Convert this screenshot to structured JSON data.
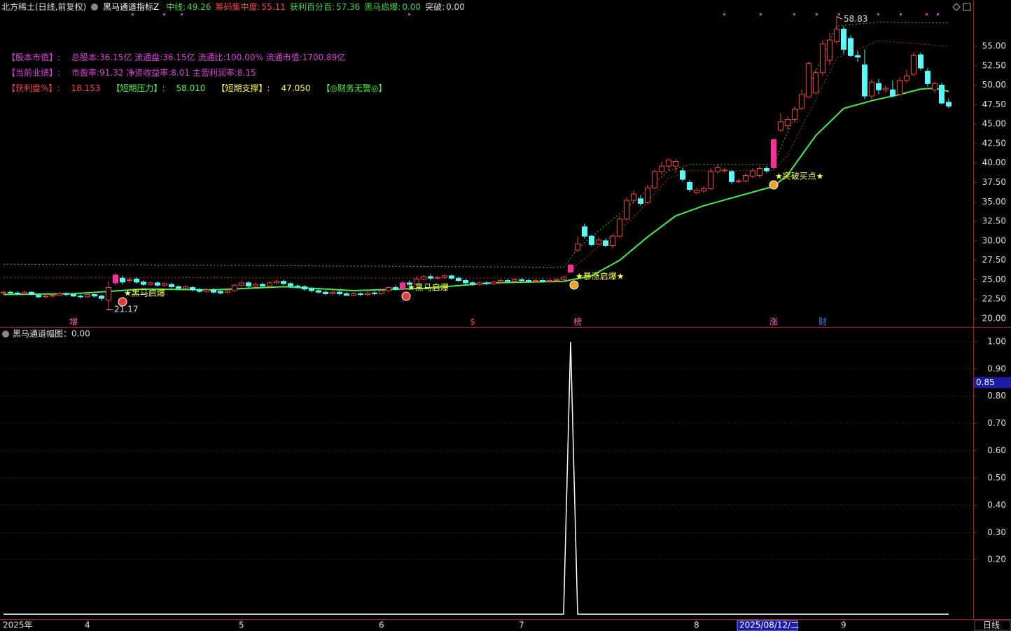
{
  "header": {
    "symbol": "北方稀土(日线,前复权)",
    "indicator": "黑马通道指标Z",
    "readouts": [
      {
        "label": "中线:",
        "value": 49.26,
        "color": "#3ddc3d"
      },
      {
        "label": "筹码集中度:",
        "value": 55.11,
        "color": "#ff4040"
      },
      {
        "label": "获利百分百:",
        "value": 57.36,
        "color": "#3ddc3d"
      },
      {
        "label": "黑马启爆:",
        "value": 0,
        "value_label": "0.00",
        "color": "#3ddc3d"
      },
      {
        "label": "突破:",
        "value": 0,
        "value_label": "0.00",
        "color": "#dddddd"
      }
    ]
  },
  "info_panel": [
    [
      {
        "text": "【股本市值】:",
        "color": "#e040e0"
      },
      {
        "text": "总股本:36.15亿 流通盘:36.15亿 流通比:100.00% 流通市值:1700.89亿",
        "color": "#e040e0"
      }
    ],
    [
      {
        "text": "【当前业绩】:",
        "color": "#e040e0"
      },
      {
        "text": "市盈率:91.32 净资收益率:8.01 主营利润率:8.15",
        "color": "#e040e0"
      }
    ],
    [
      {
        "text": "【获利盘%】:",
        "color": "#ff4040"
      },
      {
        "text": "18.153",
        "color": "#ff4040"
      },
      {
        "text": "【短期压力】:",
        "color": "#40ff40"
      },
      {
        "text": "58.010",
        "color": "#40ff40"
      },
      {
        "text": "【短期支撑】:",
        "color": "#ffff40"
      },
      {
        "text": "47.050",
        "color": "#ffff40"
      },
      {
        "text": "【◎财务无警◎】",
        "color": "#40ff40"
      }
    ]
  ],
  "time_axis": {
    "ticks": [
      {
        "index": 0,
        "label": "2025年"
      },
      {
        "index": 12,
        "label": "4"
      },
      {
        "index": 34,
        "label": "5"
      },
      {
        "index": 54,
        "label": "6"
      },
      {
        "index": 74,
        "label": "7"
      },
      {
        "index": 99,
        "label": "8"
      },
      {
        "index": 120,
        "label": "9"
      }
    ],
    "cursor": {
      "index": 105,
      "label": "2025/08/12/二"
    },
    "period": "日线"
  },
  "chart_data": [
    {
      "type": "candlestick",
      "ylim": [
        18.92,
        59.32
      ],
      "grid": false,
      "yticks": [
        {
          "value": 20,
          "label": "20.00"
        },
        {
          "value": 22.5,
          "label": "22.50"
        },
        {
          "value": 25,
          "label": "25.00"
        },
        {
          "value": 27.5,
          "label": "27.50"
        },
        {
          "value": 30,
          "label": "30.00"
        },
        {
          "value": 32.5,
          "label": "32.50"
        },
        {
          "value": 35,
          "label": "35.00"
        },
        {
          "value": 37.5,
          "label": "37.50"
        },
        {
          "value": 40,
          "label": "40.00"
        },
        {
          "value": 42.5,
          "label": "42.50"
        },
        {
          "value": 45,
          "label": "45.00"
        },
        {
          "value": 47.5,
          "label": "47.50"
        },
        {
          "value": 50,
          "label": "50.00"
        },
        {
          "value": 52.5,
          "label": "52.50"
        },
        {
          "value": 55,
          "label": "55.00"
        }
      ],
      "open": [
        23.3,
        23.4,
        23.3,
        23.2,
        23.4,
        23.0,
        22.8,
        22.9,
        23.0,
        23.2,
        23.1,
        22.9,
        22.8,
        23.1,
        22.9,
        22.4,
        24.6,
        25.2,
        24.9,
        25.1,
        24.7,
        24.4,
        24.6,
        24.3,
        24.4,
        24.1,
        23.9,
        24.0,
        23.7,
        23.5,
        23.7,
        23.5,
        23.4,
        23.6,
        24.3,
        24.6,
        24.2,
        24.4,
        24.2,
        24.6,
        24.8,
        24.5,
        24.2,
        24.1,
        23.8,
        23.6,
        23.4,
        23.2,
        23.4,
        23.2,
        23.0,
        23.2,
        23.1,
        23.3,
        23.2,
        23.6,
        24.0,
        23.8,
        24.6,
        24.4,
        25.1,
        25.4,
        25.2,
        25.3,
        25.5,
        25.2,
        24.9,
        24.6,
        24.4,
        24.6,
        24.5,
        24.7,
        24.9,
        24.8,
        25.0,
        24.9,
        24.8,
        24.9,
        24.8,
        24.9,
        25.0,
        26.0,
        28.8,
        31.8,
        30.6,
        29.6,
        30.0,
        29.4,
        30.6,
        32.8,
        35.2,
        35.4,
        34.9,
        36.8,
        38.9,
        39.6,
        39.6,
        39.0,
        37.5,
        36.2,
        36.4,
        36.7,
        38.9,
        39.0,
        38.9,
        37.6,
        37.7,
        38.3,
        38.4,
        39.3,
        39.4,
        44.2,
        44.8,
        45.6,
        47.0,
        48.5,
        49.0,
        51.6,
        53.2,
        55.6,
        57.2,
        56.0,
        53.8,
        52.6,
        48.6,
        50.2,
        49.4,
        49.4,
        48.8,
        50.6,
        51.4,
        53.9,
        51.8,
        49.4,
        50.0,
        47.8
      ],
      "high": [
        23.6,
        23.6,
        23.5,
        23.6,
        23.5,
        23.2,
        23.1,
        23.2,
        23.4,
        23.4,
        23.3,
        23.1,
        23.3,
        23.2,
        23.1,
        24.8,
        25.8,
        25.5,
        25.3,
        25.3,
        24.9,
        24.8,
        24.8,
        24.7,
        24.6,
        24.3,
        24.3,
        24.2,
        23.9,
        23.9,
        23.9,
        23.7,
        23.8,
        24.5,
        24.8,
        24.8,
        24.6,
        24.6,
        24.8,
        25.0,
        25.0,
        24.7,
        24.4,
        24.3,
        24.0,
        23.8,
        23.6,
        23.6,
        23.6,
        23.4,
        23.4,
        23.4,
        23.5,
        23.5,
        23.8,
        24.2,
        24.3,
        24.8,
        24.9,
        25.5,
        25.6,
        25.7,
        25.5,
        25.7,
        25.7,
        25.4,
        25.1,
        24.8,
        24.8,
        24.8,
        24.9,
        25.1,
        25.1,
        25.2,
        25.2,
        25.1,
        25.1,
        25.1,
        25.1,
        25.2,
        25.5,
        27.0,
        30.6,
        32.2,
        30.8,
        30.4,
        30.3,
        30.8,
        33.2,
        35.6,
        36.5,
        35.8,
        37.2,
        39.2,
        40.2,
        40.6,
        40.5,
        39.4,
        37.8,
        36.8,
        37.0,
        39.3,
        39.8,
        39.4,
        39.1,
        38.0,
        38.7,
        39.3,
        39.6,
        39.6,
        43.0,
        46.4,
        46.0,
        47.3,
        49.4,
        53.0,
        52.0,
        55.8,
        56.7,
        58.83,
        57.6,
        56.4,
        54.4,
        54.6,
        50.8,
        50.8,
        50.0,
        50.6,
        51.0,
        52.0,
        54.2,
        54.2,
        52.2,
        50.4,
        50.3,
        48.3
      ],
      "low": [
        23.1,
        23.2,
        23.0,
        23.1,
        23.0,
        22.6,
        22.6,
        22.7,
        22.9,
        22.9,
        22.8,
        22.6,
        22.7,
        22.7,
        22.3,
        21.17,
        24.3,
        24.4,
        24.6,
        24.5,
        24.2,
        24.2,
        24.1,
        24.1,
        23.9,
        23.7,
        23.7,
        23.5,
        23.3,
        23.3,
        23.2,
        23.1,
        23.2,
        23.4,
        24.1,
        24.0,
        24.0,
        24.0,
        24.0,
        24.4,
        24.3,
        24.0,
        23.9,
        23.6,
        23.4,
        23.2,
        23.0,
        23.0,
        23.0,
        22.9,
        22.9,
        22.9,
        22.9,
        23.0,
        23.0,
        23.4,
        23.6,
        23.6,
        24.2,
        24.2,
        24.9,
        24.9,
        25.0,
        25.1,
        25.0,
        24.7,
        24.4,
        24.2,
        24.2,
        24.3,
        24.3,
        24.5,
        24.6,
        24.6,
        24.7,
        24.6,
        24.6,
        24.6,
        24.6,
        24.7,
        24.8,
        25.9,
        28.6,
        30.3,
        29.3,
        29.4,
        29.2,
        29.0,
        30.4,
        32.6,
        34.8,
        34.5,
        34.7,
        36.6,
        38.5,
        39.0,
        38.8,
        37.6,
        36.3,
        36.0,
        36.2,
        36.5,
        38.6,
        38.7,
        37.3,
        37.4,
        37.5,
        38.0,
        38.1,
        38.7,
        39.2,
        44.0,
        44.3,
        45.2,
        46.8,
        48.3,
        48.8,
        51.2,
        52.6,
        55.3,
        54.0,
        53.6,
        53.0,
        48.2,
        48.2,
        48.8,
        49.0,
        48.4,
        48.6,
        50.3,
        51.2,
        51.9,
        49.8,
        49.0,
        47.5,
        47.0
      ],
      "close": [
        23.4,
        23.3,
        23.2,
        23.4,
        23.1,
        22.8,
        22.9,
        23.0,
        23.2,
        23.1,
        22.9,
        22.8,
        23.1,
        22.9,
        22.6,
        24.0,
        25.6,
        24.7,
        25.0,
        24.7,
        24.4,
        24.6,
        24.3,
        24.5,
        24.1,
        23.9,
        24.1,
        23.7,
        23.5,
        23.7,
        23.4,
        23.3,
        23.6,
        24.3,
        24.6,
        24.2,
        24.4,
        24.2,
        24.6,
        24.8,
        24.5,
        24.2,
        24.1,
        23.8,
        23.6,
        23.4,
        23.2,
        23.4,
        23.2,
        23.0,
        23.2,
        23.1,
        23.3,
        23.2,
        23.6,
        24.0,
        23.8,
        24.6,
        24.4,
        25.1,
        25.4,
        25.2,
        25.3,
        25.5,
        25.2,
        24.9,
        24.6,
        24.4,
        24.6,
        24.5,
        24.7,
        24.9,
        24.8,
        25.0,
        24.9,
        24.8,
        24.9,
        24.8,
        24.9,
        25.0,
        25.3,
        26.9,
        29.6,
        30.6,
        29.5,
        30.1,
        29.4,
        30.6,
        32.8,
        35.2,
        36.0,
        34.8,
        36.8,
        38.9,
        39.6,
        40.4,
        40.2,
        37.9,
        36.6,
        36.5,
        36.7,
        38.9,
        39.4,
        39.1,
        37.6,
        37.7,
        38.4,
        39.0,
        39.3,
        39.0,
        43.0,
        45.3,
        45.6,
        46.9,
        48.8,
        52.8,
        51.6,
        55.3,
        55.8,
        57.2,
        54.6,
        53.8,
        53.6,
        48.6,
        50.4,
        49.4,
        49.6,
        48.6,
        50.6,
        51.2,
        53.8,
        52.2,
        50.2,
        50.2,
        47.7,
        47.3
      ],
      "up_color": "#ff3c3c",
      "down_color": "#54fcfc",
      "special_color": "#ff2d9b",
      "special": [
        16,
        57,
        81,
        110
      ],
      "lines": [
        {
          "color": "#44ee44",
          "style": "solid",
          "x": [
            0,
            10,
            20,
            30,
            40,
            50,
            60,
            70,
            80,
            84,
            88,
            92,
            96,
            100,
            104,
            108,
            110,
            112,
            116,
            120,
            124,
            128,
            131,
            133,
            135
          ],
          "values": [
            23.1,
            23.2,
            23.8,
            23.7,
            24.1,
            23.6,
            23.9,
            24.6,
            24.8,
            25.5,
            27.5,
            30.5,
            33.2,
            34.5,
            35.5,
            36.5,
            37.0,
            38.5,
            43.5,
            47.0,
            48.0,
            48.8,
            49.5,
            49.6,
            49.2
          ]
        },
        {
          "color": "#3fbf3f",
          "style": "dotted",
          "x": [
            0,
            80,
            82,
            90,
            95,
            98,
            110,
            112,
            119,
            125,
            135
          ],
          "values": [
            27.0,
            26.6,
            29.0,
            35.0,
            39.0,
            39.8,
            39.8,
            44.0,
            57.6,
            58.1,
            58.0
          ]
        },
        {
          "color": "#c03030",
          "style": "dotted",
          "x": [
            0,
            80,
            82,
            90,
            95,
            98,
            110,
            112,
            119,
            125,
            135
          ],
          "values": [
            25.3,
            25.2,
            27.0,
            33.0,
            38.0,
            39.0,
            39.0,
            41.0,
            53.5,
            55.7,
            55.0
          ]
        }
      ],
      "annotations": [
        {
          "x": 17,
          "y": 23.24,
          "text": "★黑马启爆",
          "icon_color": "#e83a3a"
        },
        {
          "x": 57.5,
          "y": 23.96,
          "text": "★黑马启爆",
          "icon_color": "#e83a3a"
        },
        {
          "x": 81.5,
          "y": 25.4,
          "text": "★暴涨启爆★",
          "icon_color": "#f0a020"
        },
        {
          "x": 110,
          "y": 38.26,
          "text": "★突破买点★",
          "icon_color": "#f0a020"
        }
      ],
      "markers": [
        {
          "x": 10,
          "label": "增",
          "color": "#ff60c0"
        },
        {
          "x": 67,
          "label": "$",
          "color": "#ff4040"
        },
        {
          "x": 82,
          "label": "榜",
          "color": "#ff60c0"
        },
        {
          "x": 110,
          "label": "涨",
          "color": "#ff60c0"
        },
        {
          "x": 117,
          "label": "财",
          "color": "#4080ff"
        }
      ]
    },
    {
      "type": "line",
      "title": "黑马通道幅图：0.00",
      "ylim": [
        0,
        1.046
      ],
      "grid": true,
      "color": "#ffffff",
      "yticks": [
        {
          "value": 0.2,
          "label": "0.20"
        },
        {
          "value": 0.3,
          "label": "0.30"
        },
        {
          "value": 0.4,
          "label": "0.40"
        },
        {
          "value": 0.5,
          "label": "0.50"
        },
        {
          "value": 0.6,
          "label": "0.60"
        },
        {
          "value": 0.7,
          "label": "0.70"
        },
        {
          "value": 0.8,
          "label": "0.80"
        },
        {
          "value": 0.9,
          "label": "0.90"
        },
        {
          "value": 1,
          "label": "1.00"
        }
      ],
      "x": [
        0,
        80,
        81,
        82,
        135
      ],
      "values": [
        0,
        0,
        1,
        0,
        0
      ],
      "cursor_value": 0.85
    }
  ]
}
